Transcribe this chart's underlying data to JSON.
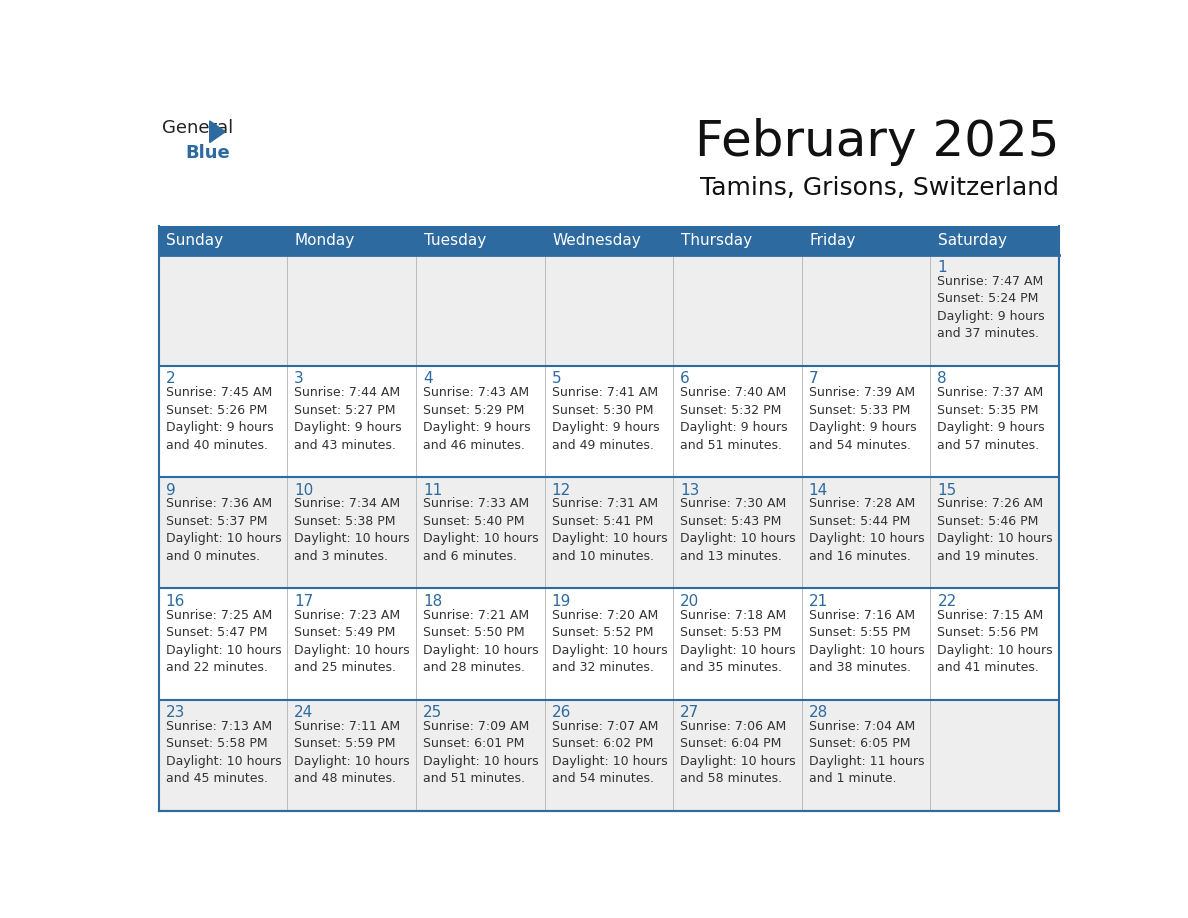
{
  "title": "February 2025",
  "subtitle": "Tamins, Grisons, Switzerland",
  "header_bg": "#2D6AA0",
  "header_text_color": "#FFFFFF",
  "cell_bg_light": "#EEEEEE",
  "cell_bg_white": "#FFFFFF",
  "border_color": "#2D6AA0",
  "text_color": "#333333",
  "day_num_color": "#2D6AA0",
  "day_headers": [
    "Sunday",
    "Monday",
    "Tuesday",
    "Wednesday",
    "Thursday",
    "Friday",
    "Saturday"
  ],
  "weeks": [
    [
      {
        "day": null,
        "info": ""
      },
      {
        "day": null,
        "info": ""
      },
      {
        "day": null,
        "info": ""
      },
      {
        "day": null,
        "info": ""
      },
      {
        "day": null,
        "info": ""
      },
      {
        "day": null,
        "info": ""
      },
      {
        "day": 1,
        "info": "Sunrise: 7:47 AM\nSunset: 5:24 PM\nDaylight: 9 hours\nand 37 minutes."
      }
    ],
    [
      {
        "day": 2,
        "info": "Sunrise: 7:45 AM\nSunset: 5:26 PM\nDaylight: 9 hours\nand 40 minutes."
      },
      {
        "day": 3,
        "info": "Sunrise: 7:44 AM\nSunset: 5:27 PM\nDaylight: 9 hours\nand 43 minutes."
      },
      {
        "day": 4,
        "info": "Sunrise: 7:43 AM\nSunset: 5:29 PM\nDaylight: 9 hours\nand 46 minutes."
      },
      {
        "day": 5,
        "info": "Sunrise: 7:41 AM\nSunset: 5:30 PM\nDaylight: 9 hours\nand 49 minutes."
      },
      {
        "day": 6,
        "info": "Sunrise: 7:40 AM\nSunset: 5:32 PM\nDaylight: 9 hours\nand 51 minutes."
      },
      {
        "day": 7,
        "info": "Sunrise: 7:39 AM\nSunset: 5:33 PM\nDaylight: 9 hours\nand 54 minutes."
      },
      {
        "day": 8,
        "info": "Sunrise: 7:37 AM\nSunset: 5:35 PM\nDaylight: 9 hours\nand 57 minutes."
      }
    ],
    [
      {
        "day": 9,
        "info": "Sunrise: 7:36 AM\nSunset: 5:37 PM\nDaylight: 10 hours\nand 0 minutes."
      },
      {
        "day": 10,
        "info": "Sunrise: 7:34 AM\nSunset: 5:38 PM\nDaylight: 10 hours\nand 3 minutes."
      },
      {
        "day": 11,
        "info": "Sunrise: 7:33 AM\nSunset: 5:40 PM\nDaylight: 10 hours\nand 6 minutes."
      },
      {
        "day": 12,
        "info": "Sunrise: 7:31 AM\nSunset: 5:41 PM\nDaylight: 10 hours\nand 10 minutes."
      },
      {
        "day": 13,
        "info": "Sunrise: 7:30 AM\nSunset: 5:43 PM\nDaylight: 10 hours\nand 13 minutes."
      },
      {
        "day": 14,
        "info": "Sunrise: 7:28 AM\nSunset: 5:44 PM\nDaylight: 10 hours\nand 16 minutes."
      },
      {
        "day": 15,
        "info": "Sunrise: 7:26 AM\nSunset: 5:46 PM\nDaylight: 10 hours\nand 19 minutes."
      }
    ],
    [
      {
        "day": 16,
        "info": "Sunrise: 7:25 AM\nSunset: 5:47 PM\nDaylight: 10 hours\nand 22 minutes."
      },
      {
        "day": 17,
        "info": "Sunrise: 7:23 AM\nSunset: 5:49 PM\nDaylight: 10 hours\nand 25 minutes."
      },
      {
        "day": 18,
        "info": "Sunrise: 7:21 AM\nSunset: 5:50 PM\nDaylight: 10 hours\nand 28 minutes."
      },
      {
        "day": 19,
        "info": "Sunrise: 7:20 AM\nSunset: 5:52 PM\nDaylight: 10 hours\nand 32 minutes."
      },
      {
        "day": 20,
        "info": "Sunrise: 7:18 AM\nSunset: 5:53 PM\nDaylight: 10 hours\nand 35 minutes."
      },
      {
        "day": 21,
        "info": "Sunrise: 7:16 AM\nSunset: 5:55 PM\nDaylight: 10 hours\nand 38 minutes."
      },
      {
        "day": 22,
        "info": "Sunrise: 7:15 AM\nSunset: 5:56 PM\nDaylight: 10 hours\nand 41 minutes."
      }
    ],
    [
      {
        "day": 23,
        "info": "Sunrise: 7:13 AM\nSunset: 5:58 PM\nDaylight: 10 hours\nand 45 minutes."
      },
      {
        "day": 24,
        "info": "Sunrise: 7:11 AM\nSunset: 5:59 PM\nDaylight: 10 hours\nand 48 minutes."
      },
      {
        "day": 25,
        "info": "Sunrise: 7:09 AM\nSunset: 6:01 PM\nDaylight: 10 hours\nand 51 minutes."
      },
      {
        "day": 26,
        "info": "Sunrise: 7:07 AM\nSunset: 6:02 PM\nDaylight: 10 hours\nand 54 minutes."
      },
      {
        "day": 27,
        "info": "Sunrise: 7:06 AM\nSunset: 6:04 PM\nDaylight: 10 hours\nand 58 minutes."
      },
      {
        "day": 28,
        "info": "Sunrise: 7:04 AM\nSunset: 6:05 PM\nDaylight: 11 hours\nand 1 minute."
      },
      {
        "day": null,
        "info": ""
      }
    ]
  ],
  "logo_text_general": "General",
  "logo_text_blue": "Blue",
  "logo_color_general": "#222222",
  "logo_color_blue": "#2D6AA0",
  "logo_triangle_color": "#2D6AA0",
  "title_fontsize": 36,
  "subtitle_fontsize": 18,
  "header_fontsize": 11,
  "day_num_fontsize": 11,
  "info_fontsize": 9
}
